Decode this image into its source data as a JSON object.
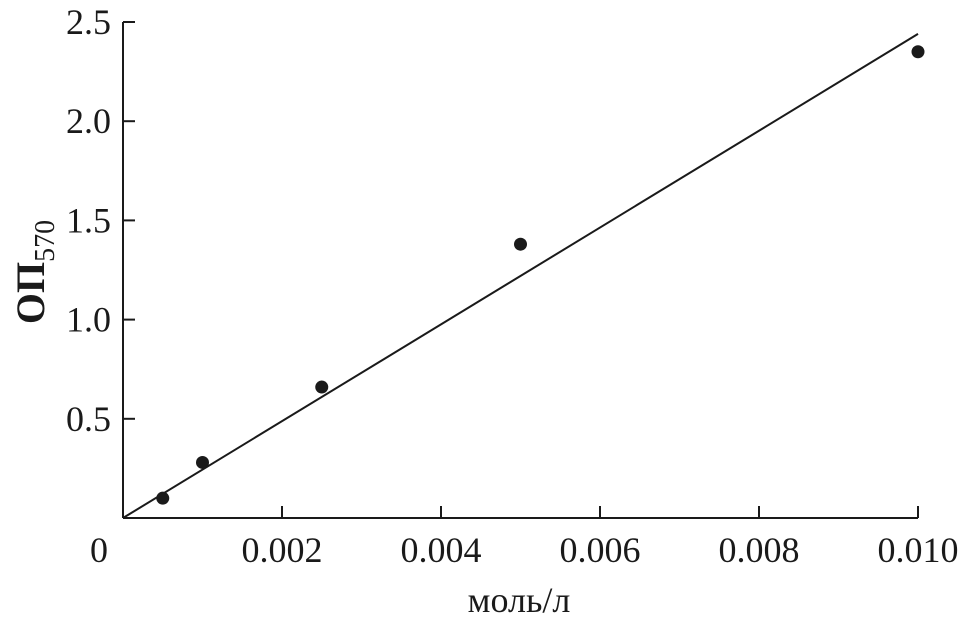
{
  "chart_data": {
    "type": "scatter",
    "title": "",
    "xlabel": "моль/л",
    "ylabel": {
      "main": "ОП",
      "subscript": "570"
    },
    "xlim": [
      0,
      0.01
    ],
    "ylim": [
      0,
      2.5
    ],
    "x_ticks": [
      {
        "value": 0,
        "label": "0"
      },
      {
        "value": 0.002,
        "label": "0.002"
      },
      {
        "value": 0.004,
        "label": "0.004"
      },
      {
        "value": 0.006,
        "label": "0.006"
      },
      {
        "value": 0.008,
        "label": "0.008"
      },
      {
        "value": 0.01,
        "label": "0.010"
      }
    ],
    "y_ticks": [
      {
        "value": 0.5,
        "label": "0.5"
      },
      {
        "value": 1.0,
        "label": "1.0"
      },
      {
        "value": 1.5,
        "label": "1.5"
      },
      {
        "value": 2.0,
        "label": "2.0"
      },
      {
        "value": 2.5,
        "label": "2.5"
      }
    ],
    "series": [
      {
        "points": [
          {
            "x": 0.0005,
            "y": 0.1
          },
          {
            "x": 0.001,
            "y": 0.28
          },
          {
            "x": 0.0025,
            "y": 0.66
          },
          {
            "x": 0.005,
            "y": 1.38
          },
          {
            "x": 0.01,
            "y": 2.35
          }
        ]
      }
    ],
    "fit_line": {
      "from": {
        "x": 0,
        "y": 0
      },
      "to": {
        "x": 0.01,
        "y": 2.44
      }
    },
    "grid": false,
    "colors": {
      "axis": "#1a1a1a",
      "marker": "#1a1a1a",
      "line": "#1a1a1a"
    }
  }
}
